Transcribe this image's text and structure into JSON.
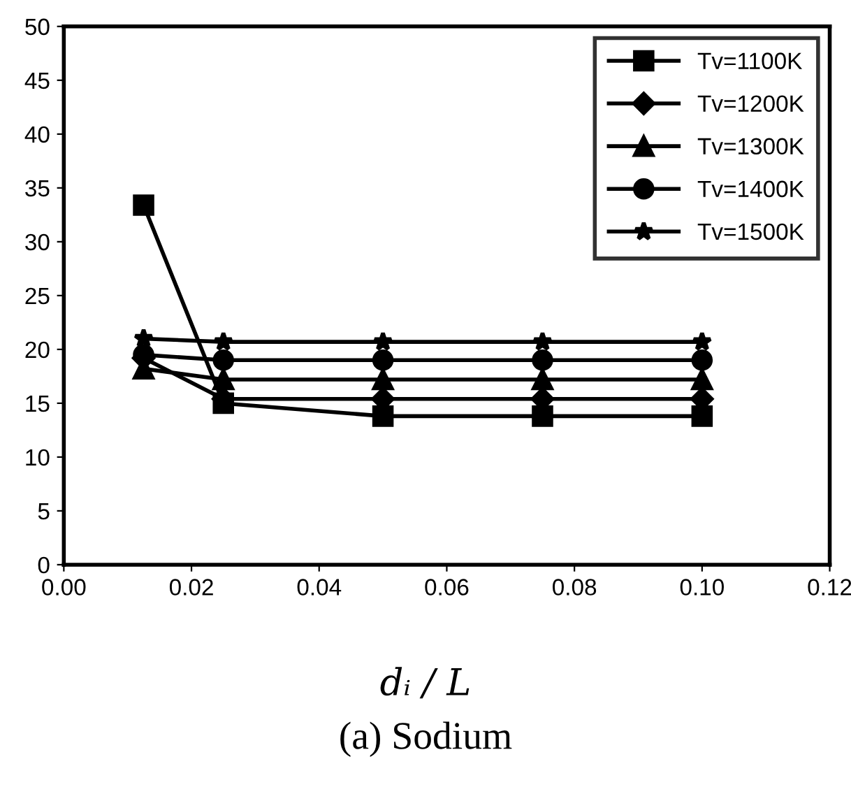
{
  "chart_data": {
    "type": "line",
    "xlabel": "dᵢ / L",
    "annotations": [
      "(a) Sodium"
    ],
    "x": [
      0.0125,
      0.025,
      0.05,
      0.075,
      0.1
    ],
    "series": [
      {
        "name": "Tv=1100K",
        "color": "#000000",
        "marker": "square",
        "values": [
          33.4,
          15.0,
          13.8,
          13.8,
          13.8
        ]
      },
      {
        "name": "Tv=1200K",
        "color": "#000000",
        "marker": "diamond",
        "values": [
          19.2,
          15.4,
          15.4,
          15.4,
          15.4
        ]
      },
      {
        "name": "Tv=1300K",
        "color": "#000000",
        "marker": "triangle",
        "values": [
          18.2,
          17.2,
          17.2,
          17.2,
          17.2
        ]
      },
      {
        "name": "Tv=1400K",
        "color": "#000000",
        "marker": "circle",
        "values": [
          19.5,
          19.0,
          19.0,
          19.0,
          19.0
        ]
      },
      {
        "name": "Tv=1500K",
        "color": "#000000",
        "marker": "star",
        "values": [
          21.0,
          20.7,
          20.7,
          20.7,
          20.7
        ]
      }
    ],
    "xlim": [
      0,
      0.12
    ],
    "xticks": [
      {
        "value": 0,
        "label": "0.00"
      },
      {
        "value": 0.02,
        "label": "0.02"
      },
      {
        "value": 0.04,
        "label": "0.04"
      },
      {
        "value": 0.06,
        "label": "0.06"
      },
      {
        "value": 0.08,
        "label": "0.08"
      },
      {
        "value": 0.1,
        "label": "0.10"
      },
      {
        "value": 0.12,
        "label": "0.12"
      }
    ],
    "ylim": [
      0,
      50
    ],
    "yticks": [
      0,
      5,
      10,
      15,
      20,
      25,
      30,
      35,
      40,
      45,
      50
    ],
    "grid": false,
    "legend": "top right",
    "line_style": "solid"
  }
}
